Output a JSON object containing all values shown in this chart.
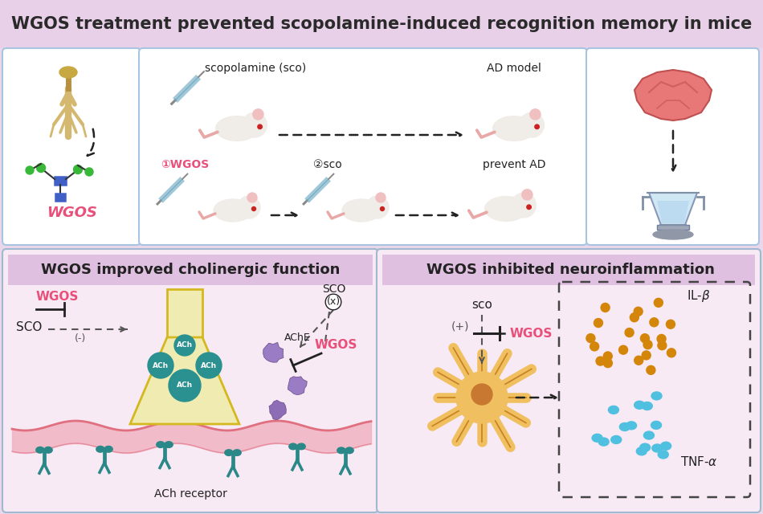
{
  "title": "WGOS treatment prevented scopolamine-induced recognition memory in mice",
  "title_fontsize": 15,
  "title_color": "#2a2a2a",
  "title_bg": "#e8d0e8",
  "outer_bg": "#ead8ea",
  "panel_bg": "#ffffff",
  "top_panel_border": "#a8c4e0",
  "bottom_left_title": "WGOS improved cholinergic function",
  "bottom_right_title": "WGOS inhibited neuroinflammation",
  "bottom_title_bg": "#e0c0e0",
  "bottom_panel_bg": "#f8eaf4",
  "bottom_border": "#a0b8d0",
  "wgos_pink": "#e8507a",
  "ach_color": "#2a9090",
  "receptor_color": "#2a8888",
  "membrane_top": "#f0b8c0",
  "il_beta_color": "#d4860a",
  "tnf_color": "#50c0e0",
  "microglia_color": "#f0c060",
  "microglia_nucleus": "#c87830",
  "section_title_fontsize": 13,
  "node_blue": "#4060c8",
  "node_green": "#38b838"
}
